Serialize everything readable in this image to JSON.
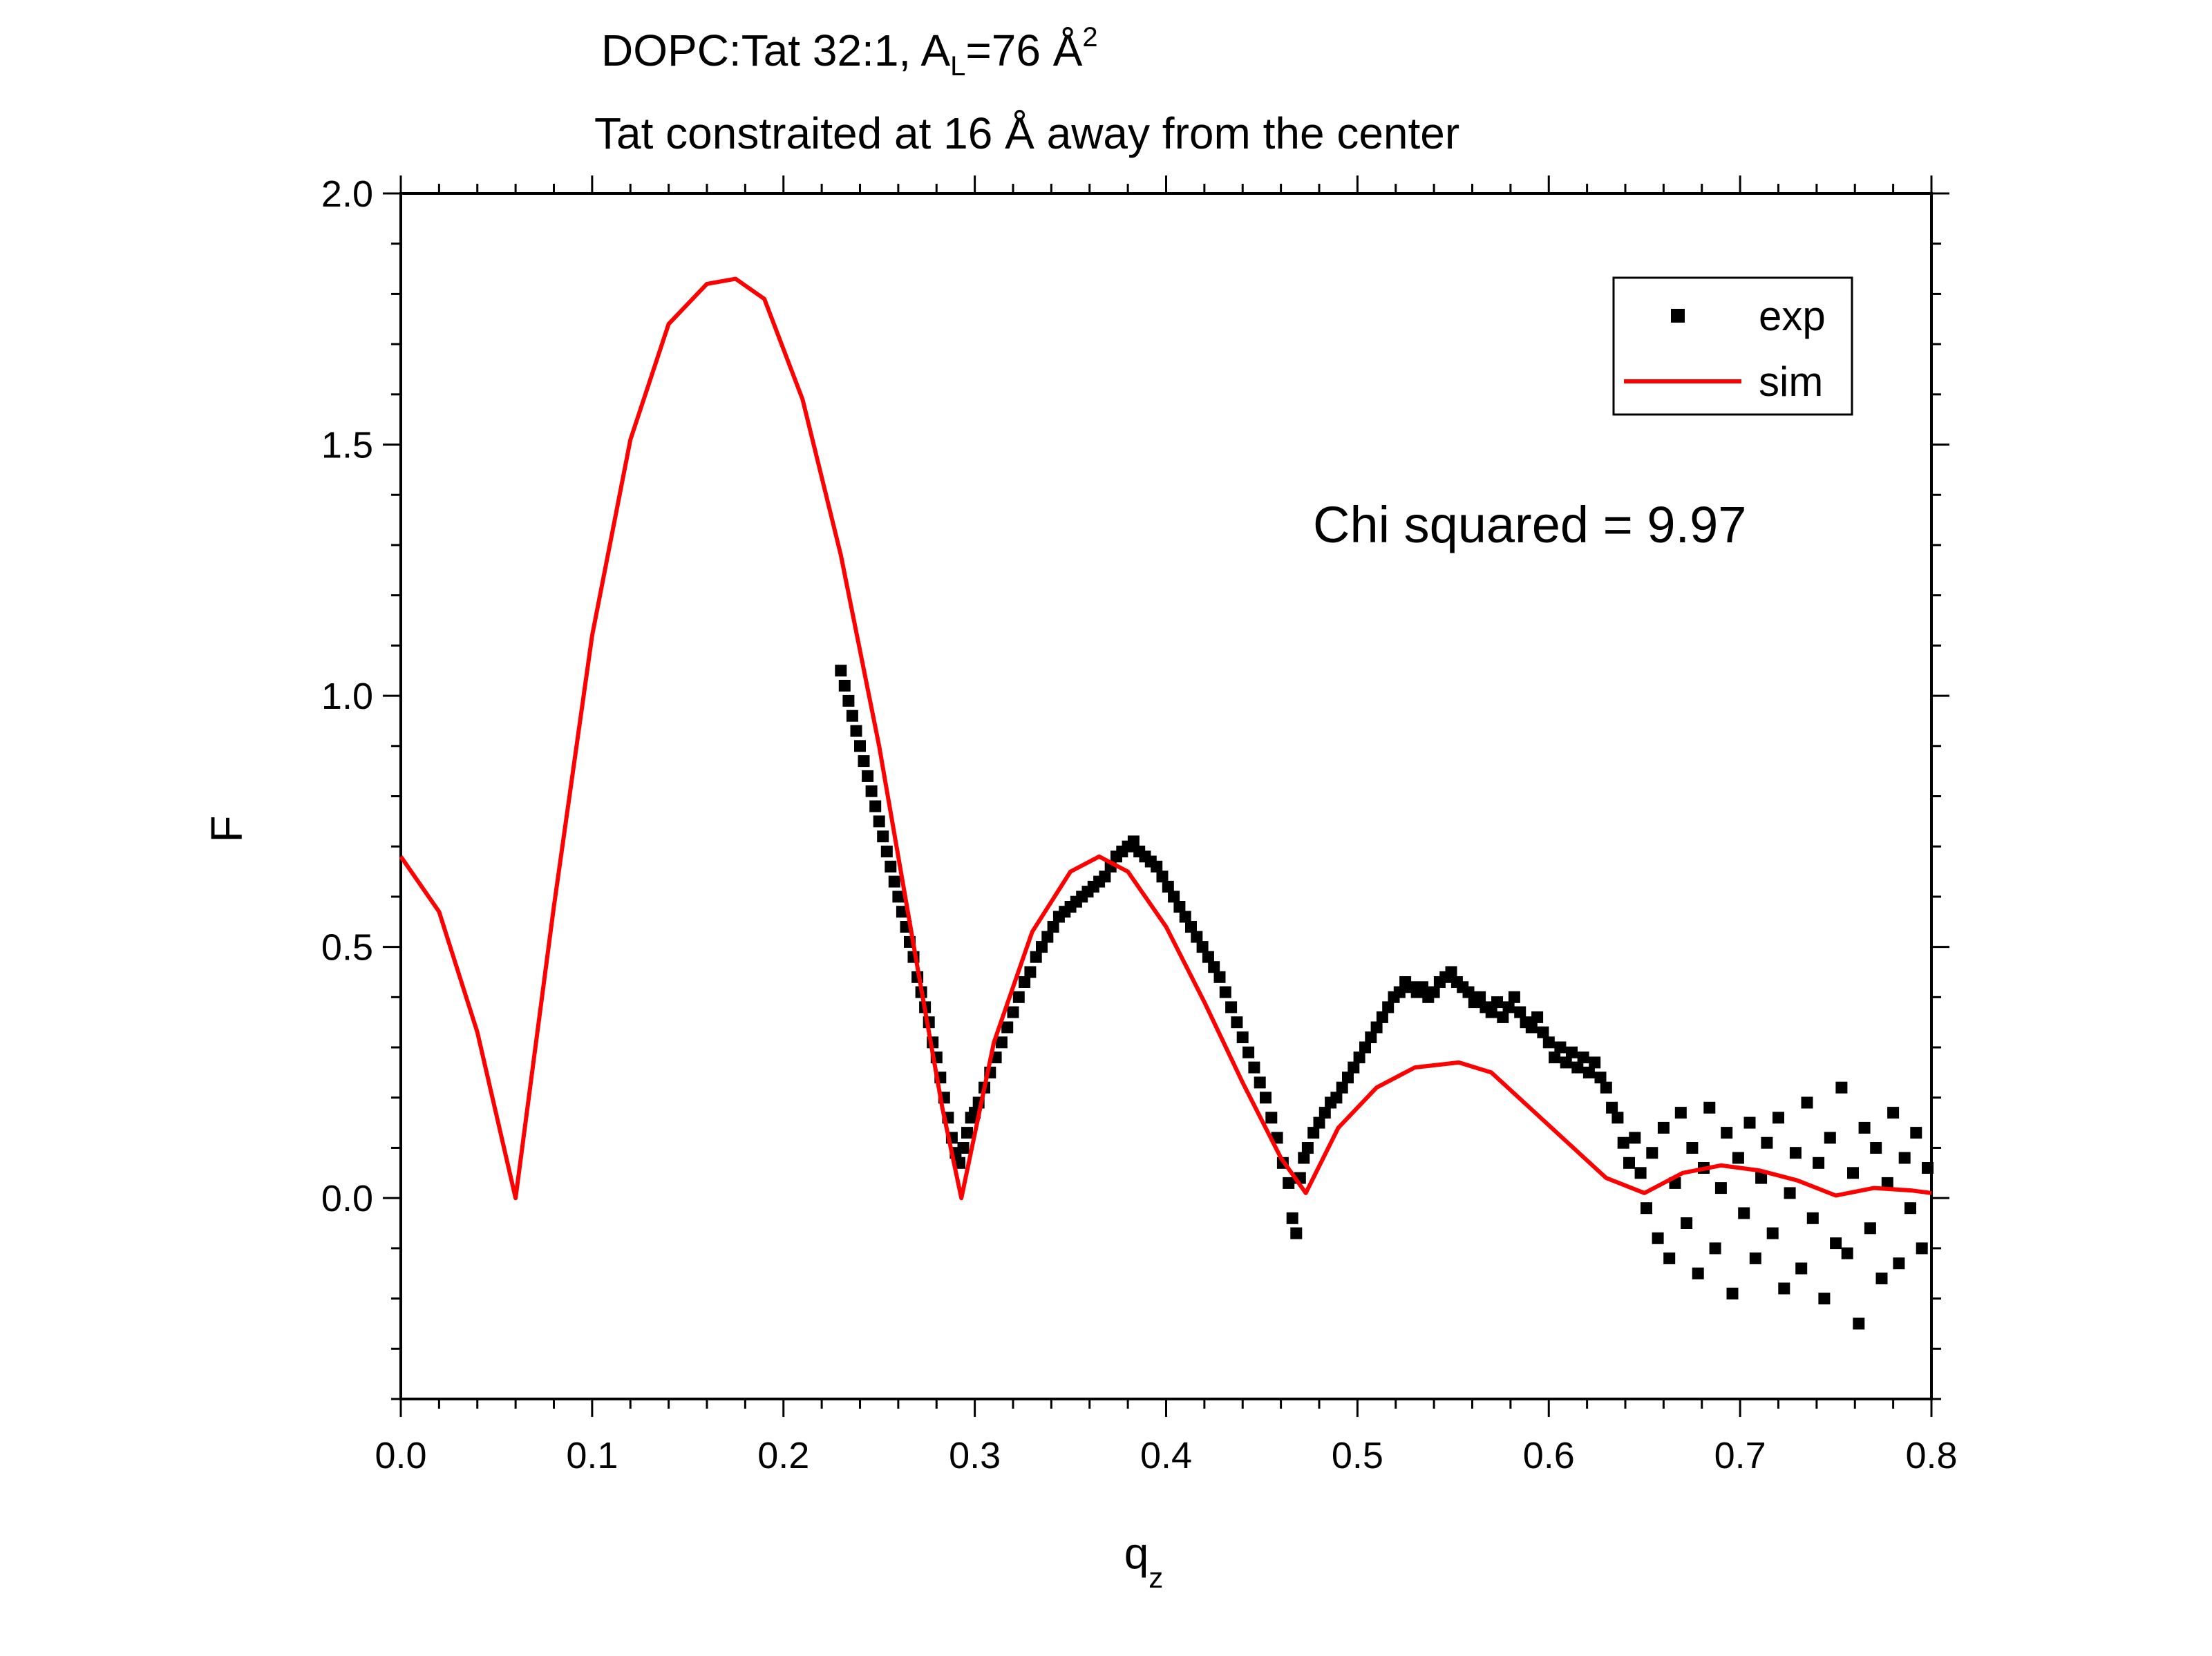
{
  "chart_data": {
    "type": "scatter",
    "title_line1": {
      "main": "DOPC:Tat 32:1, A",
      "sub": "L",
      "mid": "=76 Å",
      "sup": "2"
    },
    "title_line2": "Tat constraited at 16 Å away from the center",
    "xlabel": {
      "main": "q",
      "sub": "z"
    },
    "ylabel": "F",
    "xlim": [
      0.0,
      0.8
    ],
    "ylim": [
      -0.4,
      2.0
    ],
    "xticks": [
      "0.0",
      "0.1",
      "0.2",
      "0.3",
      "0.4",
      "0.5",
      "0.6",
      "0.7",
      "0.8"
    ],
    "yticks": [
      "0.0",
      "0.5",
      "1.0",
      "1.5",
      "2.0"
    ],
    "legend": {
      "position": "top-right",
      "exp": "exp",
      "sim": "sim"
    },
    "annotation": "Chi squared = 9.97",
    "colors": {
      "sim": "#ff0000",
      "exp": "#000000",
      "axes": "#000000"
    },
    "series": [
      {
        "name": "sim",
        "kind": "line",
        "x": [
          0.0,
          0.02,
          0.04,
          0.06,
          0.08,
          0.1,
          0.12,
          0.14,
          0.16,
          0.175,
          0.19,
          0.21,
          0.23,
          0.25,
          0.27,
          0.283,
          0.293,
          0.31,
          0.33,
          0.35,
          0.365,
          0.38,
          0.4,
          0.42,
          0.44,
          0.46,
          0.473,
          0.49,
          0.51,
          0.53,
          0.553,
          0.57,
          0.59,
          0.61,
          0.63,
          0.65,
          0.67,
          0.69,
          0.71,
          0.73,
          0.75,
          0.77,
          0.79,
          0.8
        ],
        "y": [
          0.68,
          0.57,
          0.33,
          0.0,
          0.58,
          1.12,
          1.51,
          1.74,
          1.82,
          1.83,
          1.79,
          1.59,
          1.28,
          0.9,
          0.46,
          0.18,
          0.0,
          0.31,
          0.53,
          0.65,
          0.68,
          0.65,
          0.54,
          0.39,
          0.23,
          0.08,
          0.01,
          0.14,
          0.22,
          0.26,
          0.27,
          0.25,
          0.18,
          0.11,
          0.04,
          0.01,
          0.05,
          0.065,
          0.055,
          0.035,
          0.005,
          0.02,
          0.015,
          0.01
        ]
      },
      {
        "name": "exp",
        "kind": "scatter",
        "points": [
          [
            0.23,
            1.05
          ],
          [
            0.232,
            1.02
          ],
          [
            0.234,
            0.99
          ],
          [
            0.236,
            0.96
          ],
          [
            0.238,
            0.93
          ],
          [
            0.24,
            0.9
          ],
          [
            0.242,
            0.87
          ],
          [
            0.244,
            0.84
          ],
          [
            0.246,
            0.81
          ],
          [
            0.248,
            0.78
          ],
          [
            0.25,
            0.75
          ],
          [
            0.252,
            0.72
          ],
          [
            0.254,
            0.69
          ],
          [
            0.256,
            0.66
          ],
          [
            0.258,
            0.63
          ],
          [
            0.26,
            0.6
          ],
          [
            0.262,
            0.57
          ],
          [
            0.264,
            0.54
          ],
          [
            0.266,
            0.51
          ],
          [
            0.268,
            0.48
          ],
          [
            0.27,
            0.44
          ],
          [
            0.272,
            0.41
          ],
          [
            0.274,
            0.38
          ],
          [
            0.276,
            0.35
          ],
          [
            0.278,
            0.31
          ],
          [
            0.28,
            0.28
          ],
          [
            0.282,
            0.24
          ],
          [
            0.284,
            0.2
          ],
          [
            0.286,
            0.16
          ],
          [
            0.288,
            0.12
          ],
          [
            0.29,
            0.09
          ],
          [
            0.292,
            0.07
          ],
          [
            0.294,
            0.1
          ],
          [
            0.296,
            0.13
          ],
          [
            0.298,
            0.16
          ],
          [
            0.3,
            0.17
          ],
          [
            0.302,
            0.19
          ],
          [
            0.305,
            0.22
          ],
          [
            0.308,
            0.25
          ],
          [
            0.311,
            0.28
          ],
          [
            0.314,
            0.31
          ],
          [
            0.317,
            0.34
          ],
          [
            0.32,
            0.37
          ],
          [
            0.323,
            0.4
          ],
          [
            0.326,
            0.43
          ],
          [
            0.329,
            0.45
          ],
          [
            0.332,
            0.48
          ],
          [
            0.335,
            0.5
          ],
          [
            0.338,
            0.52
          ],
          [
            0.341,
            0.54
          ],
          [
            0.344,
            0.56
          ],
          [
            0.347,
            0.57
          ],
          [
            0.35,
            0.58
          ],
          [
            0.353,
            0.59
          ],
          [
            0.356,
            0.6
          ],
          [
            0.359,
            0.61
          ],
          [
            0.362,
            0.62
          ],
          [
            0.365,
            0.63
          ],
          [
            0.368,
            0.64
          ],
          [
            0.371,
            0.66
          ],
          [
            0.374,
            0.68
          ],
          [
            0.377,
            0.69
          ],
          [
            0.38,
            0.7
          ],
          [
            0.383,
            0.71
          ],
          [
            0.386,
            0.69
          ],
          [
            0.389,
            0.68
          ],
          [
            0.392,
            0.67
          ],
          [
            0.395,
            0.66
          ],
          [
            0.398,
            0.64
          ],
          [
            0.401,
            0.62
          ],
          [
            0.404,
            0.6
          ],
          [
            0.407,
            0.58
          ],
          [
            0.41,
            0.56
          ],
          [
            0.413,
            0.54
          ],
          [
            0.416,
            0.52
          ],
          [
            0.419,
            0.5
          ],
          [
            0.422,
            0.48
          ],
          [
            0.425,
            0.46
          ],
          [
            0.428,
            0.44
          ],
          [
            0.431,
            0.41
          ],
          [
            0.434,
            0.38
          ],
          [
            0.437,
            0.35
          ],
          [
            0.44,
            0.32
          ],
          [
            0.443,
            0.29
          ],
          [
            0.446,
            0.26
          ],
          [
            0.449,
            0.23
          ],
          [
            0.452,
            0.2
          ],
          [
            0.455,
            0.16
          ],
          [
            0.458,
            0.12
          ],
          [
            0.461,
            0.07
          ],
          [
            0.464,
            0.03
          ],
          [
            0.466,
            -0.04
          ],
          [
            0.468,
            -0.07
          ],
          [
            0.47,
            0.04
          ],
          [
            0.472,
            0.08
          ],
          [
            0.474,
            0.1
          ],
          [
            0.477,
            0.13
          ],
          [
            0.48,
            0.15
          ],
          [
            0.483,
            0.17
          ],
          [
            0.486,
            0.19
          ],
          [
            0.489,
            0.2
          ],
          [
            0.492,
            0.22
          ],
          [
            0.495,
            0.24
          ],
          [
            0.498,
            0.26
          ],
          [
            0.501,
            0.28
          ],
          [
            0.504,
            0.3
          ],
          [
            0.507,
            0.32
          ],
          [
            0.51,
            0.34
          ],
          [
            0.513,
            0.36
          ],
          [
            0.516,
            0.38
          ],
          [
            0.519,
            0.4
          ],
          [
            0.522,
            0.41
          ],
          [
            0.525,
            0.43
          ],
          [
            0.528,
            0.42
          ],
          [
            0.531,
            0.41
          ],
          [
            0.534,
            0.42
          ],
          [
            0.537,
            0.4
          ],
          [
            0.54,
            0.41
          ],
          [
            0.543,
            0.43
          ],
          [
            0.546,
            0.44
          ],
          [
            0.549,
            0.45
          ],
          [
            0.552,
            0.43
          ],
          [
            0.555,
            0.42
          ],
          [
            0.558,
            0.41
          ],
          [
            0.561,
            0.39
          ],
          [
            0.564,
            0.4
          ],
          [
            0.567,
            0.38
          ],
          [
            0.57,
            0.37
          ],
          [
            0.573,
            0.39
          ],
          [
            0.576,
            0.36
          ],
          [
            0.579,
            0.38
          ],
          [
            0.582,
            0.4
          ],
          [
            0.585,
            0.37
          ],
          [
            0.588,
            0.35
          ],
          [
            0.591,
            0.34
          ],
          [
            0.594,
            0.36
          ],
          [
            0.597,
            0.33
          ],
          [
            0.6,
            0.31
          ],
          [
            0.603,
            0.28
          ],
          [
            0.606,
            0.3
          ],
          [
            0.609,
            0.27
          ],
          [
            0.612,
            0.29
          ],
          [
            0.615,
            0.26
          ],
          [
            0.618,
            0.28
          ],
          [
            0.621,
            0.25
          ],
          [
            0.624,
            0.27
          ],
          [
            0.627,
            0.24
          ],
          [
            0.63,
            0.22
          ],
          [
            0.633,
            0.18
          ],
          [
            0.636,
            0.16
          ],
          [
            0.639,
            0.11
          ],
          [
            0.642,
            0.07
          ],
          [
            0.645,
            0.12
          ],
          [
            0.648,
            0.05
          ],
          [
            0.651,
            -0.02
          ],
          [
            0.654,
            0.09
          ],
          [
            0.657,
            -0.08
          ],
          [
            0.66,
            0.14
          ],
          [
            0.663,
            -0.12
          ],
          [
            0.666,
            0.03
          ],
          [
            0.669,
            0.17
          ],
          [
            0.672,
            -0.05
          ],
          [
            0.675,
            0.1
          ],
          [
            0.678,
            -0.15
          ],
          [
            0.681,
            0.06
          ],
          [
            0.684,
            0.18
          ],
          [
            0.687,
            -0.1
          ],
          [
            0.69,
            0.02
          ],
          [
            0.693,
            0.13
          ],
          [
            0.696,
            -0.19
          ],
          [
            0.699,
            0.08
          ],
          [
            0.702,
            -0.03
          ],
          [
            0.705,
            0.15
          ],
          [
            0.708,
            -0.12
          ],
          [
            0.711,
            0.04
          ],
          [
            0.714,
            0.11
          ],
          [
            0.717,
            -0.07
          ],
          [
            0.72,
            0.16
          ],
          [
            0.723,
            -0.18
          ],
          [
            0.726,
            0.01
          ],
          [
            0.729,
            0.09
          ],
          [
            0.732,
            -0.14
          ],
          [
            0.735,
            0.19
          ],
          [
            0.738,
            -0.04
          ],
          [
            0.741,
            0.07
          ],
          [
            0.744,
            -0.2
          ],
          [
            0.747,
            0.12
          ],
          [
            0.75,
            -0.09
          ],
          [
            0.753,
            0.22
          ],
          [
            0.756,
            -0.11
          ],
          [
            0.759,
            0.05
          ],
          [
            0.762,
            -0.25
          ],
          [
            0.765,
            0.14
          ],
          [
            0.768,
            -0.06
          ],
          [
            0.771,
            0.1
          ],
          [
            0.774,
            -0.16
          ],
          [
            0.777,
            0.03
          ],
          [
            0.78,
            0.17
          ],
          [
            0.783,
            -0.13
          ],
          [
            0.786,
            0.08
          ],
          [
            0.789,
            -0.02
          ],
          [
            0.792,
            0.13
          ],
          [
            0.795,
            -0.1
          ],
          [
            0.798,
            0.06
          ]
        ]
      }
    ]
  }
}
